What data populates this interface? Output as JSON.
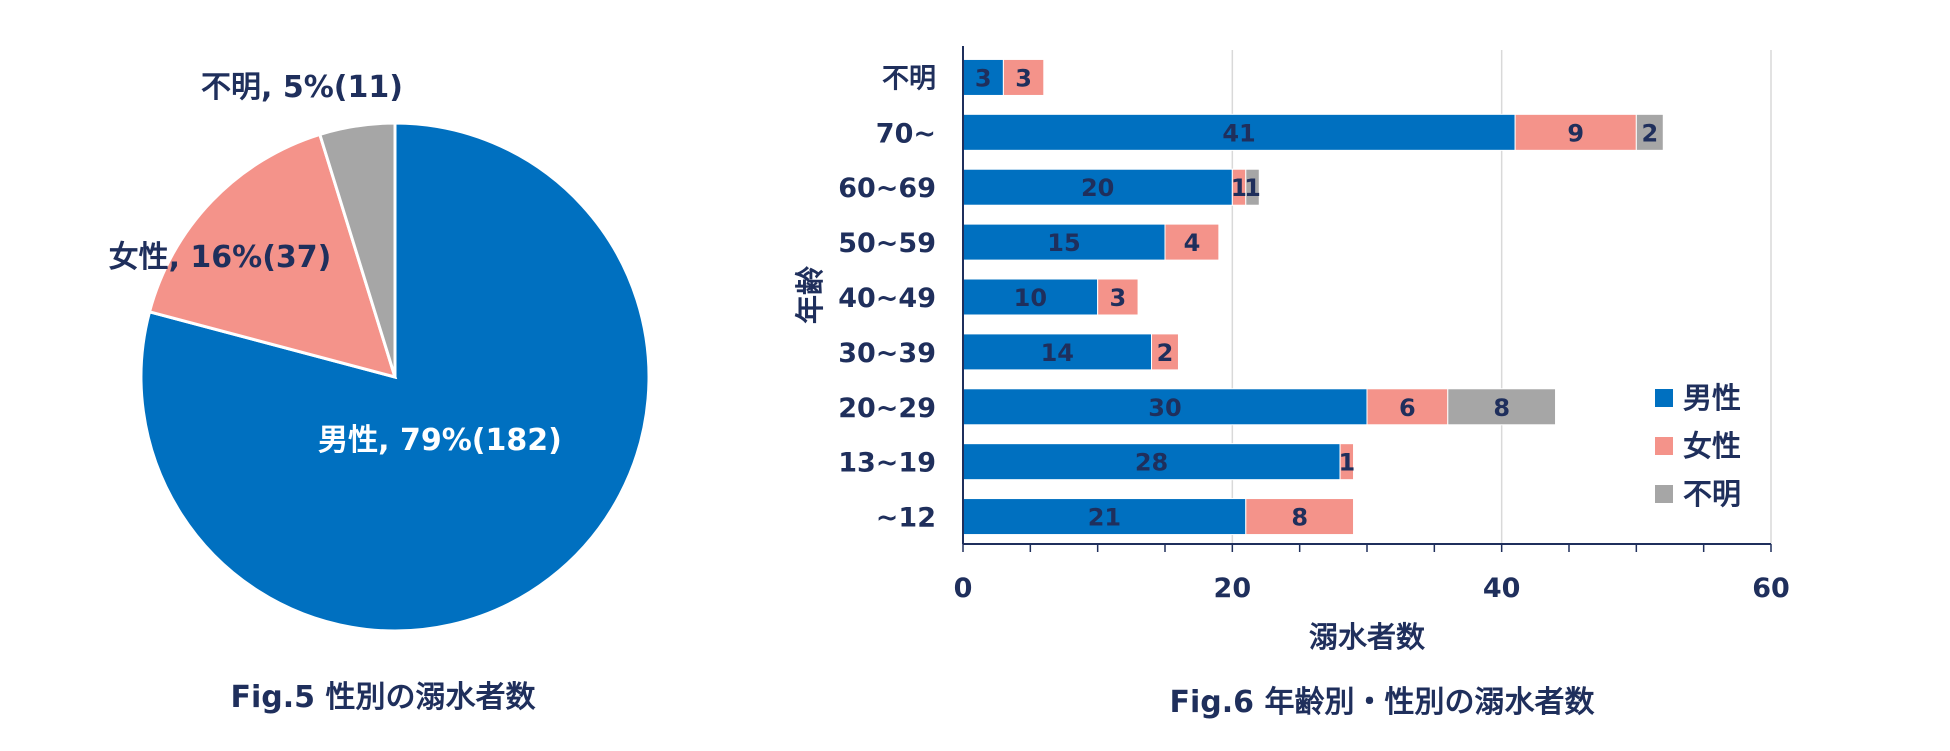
{
  "colors": {
    "male": "#0070C0",
    "female": "#F4938A",
    "unknown": "#A6A6A6",
    "text_dark": "#1F2F5C",
    "text_light": "#FFFFFF",
    "grid": "#D9D9D9",
    "axis": "#1F2F5C"
  },
  "chart_data": [
    {
      "type": "pie",
      "caption": "Fig.5 性別の溺水者数",
      "slices": [
        {
          "name": "男性",
          "percent": 79,
          "value": 182,
          "label": "男性, 79%(182)",
          "color": "#0070C0"
        },
        {
          "name": "女性",
          "percent": 16,
          "value": 37,
          "label": "女性, 16%(37)",
          "color": "#F4938A"
        },
        {
          "name": "不明",
          "percent": 5,
          "value": 11,
          "label": "不明, 5%(11)",
          "color": "#A6A6A6"
        }
      ]
    },
    {
      "type": "bar",
      "orientation": "horizontal",
      "stacked": true,
      "caption": "Fig.6 年齢別・性別の溺水者数",
      "xlabel": "溺水者数",
      "ylabel": "年齢",
      "xlim": [
        0,
        60
      ],
      "xticks": [
        0,
        20,
        40,
        60
      ],
      "grid": true,
      "legend_position": "right",
      "categories": [
        "不明",
        "70~",
        "60~69",
        "50~59",
        "40~49",
        "30~39",
        "20~29",
        "13~19",
        "~12"
      ],
      "series": [
        {
          "name": "男性",
          "color": "#0070C0",
          "values": [
            3,
            41,
            20,
            15,
            10,
            14,
            30,
            28,
            21
          ]
        },
        {
          "name": "女性",
          "color": "#F4938A",
          "values": [
            3,
            9,
            1,
            4,
            3,
            2,
            6,
            1,
            8
          ]
        },
        {
          "name": "不明",
          "color": "#A6A6A6",
          "values": [
            0,
            2,
            1,
            0,
            0,
            0,
            8,
            0,
            0
          ]
        }
      ]
    }
  ]
}
